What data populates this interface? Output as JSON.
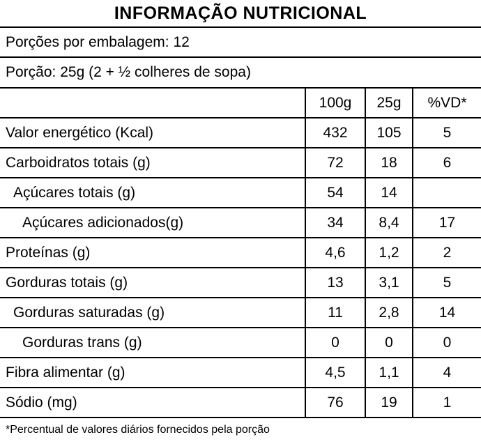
{
  "title": "INFORMAÇÃO NUTRICIONAL",
  "servings_line": "Porções por embalagem: 12",
  "portion_line": "Porção: 25g (2 + ½ colheres de sopa)",
  "table": {
    "columns": [
      "100g",
      "25g",
      "%VD*"
    ],
    "rows": [
      {
        "label": "Valor energético (Kcal)",
        "indent": 0,
        "v100g": "432",
        "v25g": "105",
        "vd": "5"
      },
      {
        "label": "Carboidratos totais (g)",
        "indent": 0,
        "v100g": "72",
        "v25g": "18",
        "vd": "6"
      },
      {
        "label": "Açúcares totais (g)",
        "indent": 1,
        "v100g": "54",
        "v25g": "14",
        "vd": ""
      },
      {
        "label": "Açúcares adicionados(g)",
        "indent": 2,
        "v100g": "34",
        "v25g": "8,4",
        "vd": "17"
      },
      {
        "label": "Proteínas (g)",
        "indent": 0,
        "v100g": "4,6",
        "v25g": "1,2",
        "vd": "2"
      },
      {
        "label": "Gorduras totais (g)",
        "indent": 0,
        "v100g": "13",
        "v25g": "3,1",
        "vd": "5"
      },
      {
        "label": "Gorduras saturadas (g)",
        "indent": 1,
        "v100g": "11",
        "v25g": "2,8",
        "vd": "14"
      },
      {
        "label": "Gorduras trans (g)",
        "indent": 2,
        "v100g": "0",
        "v25g": "0",
        "vd": "0"
      },
      {
        "label": "Fibra alimentar (g)",
        "indent": 0,
        "v100g": "4,5",
        "v25g": "1,1",
        "vd": "4"
      },
      {
        "label": "Sódio (mg)",
        "indent": 0,
        "v100g": "76",
        "v25g": "19",
        "vd": "1"
      }
    ]
  },
  "footnote": "*Percentual de valores diários fornecidos pela porção",
  "colors": {
    "text": "#000000",
    "background": "#ffffff",
    "border": "#000000"
  }
}
